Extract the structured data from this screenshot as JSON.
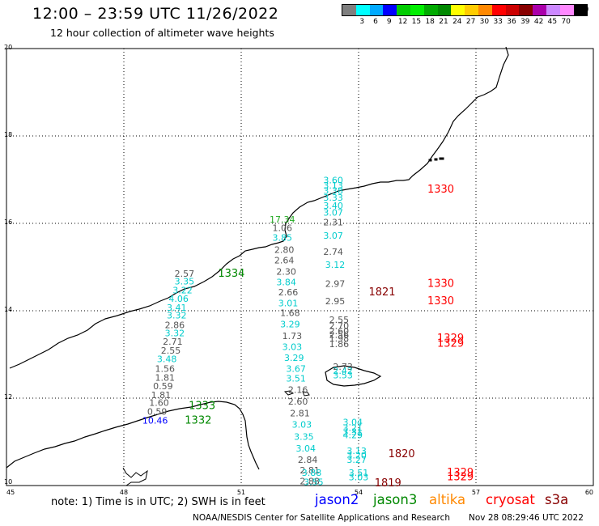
{
  "header": {
    "title": "12:00 – 23:59 UTC 11/26/2022",
    "subtitle": "12 hour collection of altimeter wave heights"
  },
  "legend": {
    "unit": "(ft)",
    "bins": [
      {
        "label": "",
        "color": "#7f7f7f"
      },
      {
        "label": "3",
        "color": "#00ffff"
      },
      {
        "label": "6",
        "color": "#00aaff"
      },
      {
        "label": "9",
        "color": "#0000ff"
      },
      {
        "label": "12",
        "color": "#00cc00"
      },
      {
        "label": "15",
        "color": "#00ee00"
      },
      {
        "label": "18",
        "color": "#00aa00"
      },
      {
        "label": "21",
        "color": "#008800"
      },
      {
        "label": "24",
        "color": "#ffff00"
      },
      {
        "label": "27",
        "color": "#ffcc00"
      },
      {
        "label": "30",
        "color": "#ff8800"
      },
      {
        "label": "33",
        "color": "#ff0000"
      },
      {
        "label": "36",
        "color": "#cc0000"
      },
      {
        "label": "39",
        "color": "#880000"
      },
      {
        "label": "42",
        "color": "#aa00aa"
      },
      {
        "label": "45",
        "color": "#cc88ff"
      },
      {
        "label": "70",
        "color": "#ff88ff"
      },
      {
        "label": "",
        "color": "#000000"
      }
    ]
  },
  "map": {
    "lon_ticks": [
      "45",
      "48",
      "51",
      "54",
      "57",
      "60"
    ],
    "lat_ticks": [
      "20",
      "18",
      "16",
      "14",
      "12",
      "10"
    ]
  },
  "observations": [
    {
      "lon": 53.35,
      "lat": 16.92,
      "text": "3.60",
      "color": "#00cccc"
    },
    {
      "lon": 53.35,
      "lat": 16.8,
      "text": "3.13",
      "color": "#00cccc"
    },
    {
      "lon": 53.35,
      "lat": 16.68,
      "text": "3.38",
      "color": "#00cccc"
    },
    {
      "lon": 53.35,
      "lat": 16.52,
      "text": "3.33",
      "color": "#00cccc"
    },
    {
      "lon": 53.35,
      "lat": 16.33,
      "text": "3.40",
      "color": "#00cccc"
    },
    {
      "lon": 53.35,
      "lat": 16.18,
      "text": "3.07",
      "color": "#00cccc"
    },
    {
      "lon": 53.35,
      "lat": 15.95,
      "text": "2.31",
      "color": "#555555"
    },
    {
      "lon": 53.35,
      "lat": 15.65,
      "text": "3.07",
      "color": "#00cccc"
    },
    {
      "lon": 53.35,
      "lat": 15.28,
      "text": "2.74",
      "color": "#555555"
    },
    {
      "lon": 53.4,
      "lat": 14.98,
      "text": "3.12",
      "color": "#00cccc"
    },
    {
      "lon": 53.4,
      "lat": 14.55,
      "text": "2.97",
      "color": "#555555"
    },
    {
      "lon": 53.4,
      "lat": 14.15,
      "text": "2.95",
      "color": "#555555"
    },
    {
      "lon": 53.5,
      "lat": 13.72,
      "text": "2.55",
      "color": "#555555"
    },
    {
      "lon": 53.5,
      "lat": 13.58,
      "text": "2.70",
      "color": "#555555"
    },
    {
      "lon": 53.5,
      "lat": 13.46,
      "text": "2.60",
      "color": "#555555"
    },
    {
      "lon": 53.5,
      "lat": 13.38,
      "text": "2.56",
      "color": "#555555"
    },
    {
      "lon": 53.5,
      "lat": 13.3,
      "text": "1.98",
      "color": "#555555"
    },
    {
      "lon": 53.5,
      "lat": 13.17,
      "text": "1.86",
      "color": "#555555"
    },
    {
      "lon": 53.6,
      "lat": 12.65,
      "text": "2.73",
      "color": "#555555"
    },
    {
      "lon": 53.6,
      "lat": 12.56,
      "text": "2.42",
      "color": "#00cccc"
    },
    {
      "lon": 53.6,
      "lat": 12.45,
      "text": "3.53",
      "color": "#00cccc"
    },
    {
      "lon": 53.85,
      "lat": 11.38,
      "text": "3.04",
      "color": "#00cccc"
    },
    {
      "lon": 53.85,
      "lat": 11.25,
      "text": "3.21",
      "color": "#00cccc"
    },
    {
      "lon": 53.85,
      "lat": 11.16,
      "text": "3.31",
      "color": "#00cccc"
    },
    {
      "lon": 53.85,
      "lat": 11.08,
      "text": "4.29",
      "color": "#00cccc"
    },
    {
      "lon": 53.95,
      "lat": 10.72,
      "text": "3.13",
      "color": "#00cccc"
    },
    {
      "lon": 53.95,
      "lat": 10.62,
      "text": "3.20",
      "color": "#00cccc"
    },
    {
      "lon": 53.95,
      "lat": 10.52,
      "text": "3.27",
      "color": "#00cccc"
    },
    {
      "lon": 54.0,
      "lat": 10.22,
      "text": "3.51",
      "color": "#00cccc"
    },
    {
      "lon": 54.0,
      "lat": 10.12,
      "text": "3.03",
      "color": "#00cccc"
    },
    {
      "lon": 52.05,
      "lat": 16.02,
      "text": "17.34",
      "color": "#22aa22"
    },
    {
      "lon": 52.05,
      "lat": 15.82,
      "text": "1.06",
      "color": "#555555"
    },
    {
      "lon": 52.05,
      "lat": 15.6,
      "text": "3.85",
      "color": "#00cccc"
    },
    {
      "lon": 52.1,
      "lat": 15.32,
      "text": "2.80",
      "color": "#555555"
    },
    {
      "lon": 52.1,
      "lat": 15.08,
      "text": "2.64",
      "color": "#555555"
    },
    {
      "lon": 52.15,
      "lat": 14.82,
      "text": "2.30",
      "color": "#555555"
    },
    {
      "lon": 52.15,
      "lat": 14.58,
      "text": "3.84",
      "color": "#00cccc"
    },
    {
      "lon": 52.2,
      "lat": 14.35,
      "text": "2.66",
      "color": "#555555"
    },
    {
      "lon": 52.2,
      "lat": 14.1,
      "text": "3.01",
      "color": "#00cccc"
    },
    {
      "lon": 52.25,
      "lat": 13.88,
      "text": "1.68",
      "color": "#555555"
    },
    {
      "lon": 52.25,
      "lat": 13.62,
      "text": "3.29",
      "color": "#00cccc"
    },
    {
      "lon": 52.3,
      "lat": 13.35,
      "text": "1.73",
      "color": "#555555"
    },
    {
      "lon": 52.3,
      "lat": 13.1,
      "text": "3.03",
      "color": "#00cccc"
    },
    {
      "lon": 52.35,
      "lat": 12.85,
      "text": "3.29",
      "color": "#00cccc"
    },
    {
      "lon": 52.4,
      "lat": 12.6,
      "text": "3.67",
      "color": "#00cccc"
    },
    {
      "lon": 52.4,
      "lat": 12.38,
      "text": "3.51",
      "color": "#00cccc"
    },
    {
      "lon": 52.45,
      "lat": 12.12,
      "text": "2.16",
      "color": "#555555"
    },
    {
      "lon": 52.45,
      "lat": 11.85,
      "text": "2.60",
      "color": "#555555"
    },
    {
      "lon": 52.5,
      "lat": 11.58,
      "text": "2.81",
      "color": "#555555"
    },
    {
      "lon": 52.55,
      "lat": 11.32,
      "text": "3.03",
      "color": "#00cccc"
    },
    {
      "lon": 52.6,
      "lat": 11.05,
      "text": "3.35",
      "color": "#00cccc"
    },
    {
      "lon": 52.65,
      "lat": 10.78,
      "text": "3.04",
      "color": "#00cccc"
    },
    {
      "lon": 52.7,
      "lat": 10.52,
      "text": "2.84",
      "color": "#555555"
    },
    {
      "lon": 52.75,
      "lat": 10.28,
      "text": "2.81",
      "color": "#555555"
    },
    {
      "lon": 52.75,
      "lat": 10.03,
      "text": "2.88",
      "color": "#555555"
    },
    {
      "lon": 52.8,
      "lat": 10.22,
      "text": "3.88",
      "color": "#00cccc"
    },
    {
      "lon": 52.85,
      "lat": 10.01,
      "text": "3.55",
      "color": "#00cccc"
    },
    {
      "lon": 49.55,
      "lat": 14.78,
      "text": "2.57",
      "color": "#555555"
    },
    {
      "lon": 49.55,
      "lat": 14.6,
      "text": "3.35",
      "color": "#00cccc"
    },
    {
      "lon": 49.5,
      "lat": 14.4,
      "text": "3.22",
      "color": "#00cccc"
    },
    {
      "lon": 49.4,
      "lat": 14.2,
      "text": "4.06",
      "color": "#00cccc"
    },
    {
      "lon": 49.35,
      "lat": 14.0,
      "text": "3.41",
      "color": "#00cccc"
    },
    {
      "lon": 49.35,
      "lat": 13.82,
      "text": "3.32",
      "color": "#00cccc"
    },
    {
      "lon": 49.3,
      "lat": 13.6,
      "text": "2.86",
      "color": "#555555"
    },
    {
      "lon": 49.3,
      "lat": 13.42,
      "text": "3.32",
      "color": "#00cccc"
    },
    {
      "lon": 49.25,
      "lat": 13.22,
      "text": "2.71",
      "color": "#555555"
    },
    {
      "lon": 49.2,
      "lat": 13.02,
      "text": "2.55",
      "color": "#555555"
    },
    {
      "lon": 49.1,
      "lat": 12.82,
      "text": "3.48",
      "color": "#00cccc"
    },
    {
      "lon": 49.05,
      "lat": 12.6,
      "text": "1.56",
      "color": "#555555"
    },
    {
      "lon": 49.05,
      "lat": 12.4,
      "text": "1.81",
      "color": "#555555"
    },
    {
      "lon": 49.0,
      "lat": 12.2,
      "text": "0.59",
      "color": "#555555"
    },
    {
      "lon": 48.95,
      "lat": 12.0,
      "text": "1.81",
      "color": "#555555"
    },
    {
      "lon": 48.9,
      "lat": 11.82,
      "text": "1.60",
      "color": "#555555"
    },
    {
      "lon": 48.85,
      "lat": 11.62,
      "text": "0.59",
      "color": "#555555"
    },
    {
      "lon": 48.8,
      "lat": 11.42,
      "text": "10.46",
      "color": "#0000ff"
    }
  ],
  "tracks": [
    {
      "lon": 56.1,
      "lat": 16.7,
      "text": "1330",
      "color": "#ff0000"
    },
    {
      "lon": 56.1,
      "lat": 14.55,
      "text": "1330",
      "color": "#ff0000"
    },
    {
      "lon": 56.1,
      "lat": 14.15,
      "text": "1330",
      "color": "#ff0000"
    },
    {
      "lon": 56.35,
      "lat": 13.3,
      "text": "1329",
      "color": "#ff0000"
    },
    {
      "lon": 56.35,
      "lat": 13.18,
      "text": "1329",
      "color": "#ff0000"
    },
    {
      "lon": 56.6,
      "lat": 10.22,
      "text": "1329",
      "color": "#ff0000"
    },
    {
      "lon": 56.6,
      "lat": 10.12,
      "text": "1329",
      "color": "#ff0000"
    },
    {
      "lon": 54.6,
      "lat": 14.35,
      "text": "1821",
      "color": "#880000"
    },
    {
      "lon": 55.1,
      "lat": 10.65,
      "text": "1820",
      "color": "#880000"
    },
    {
      "lon": 54.75,
      "lat": 9.98,
      "text": "1819",
      "color": "#880000"
    },
    {
      "lon": 50.75,
      "lat": 14.78,
      "text": "1334",
      "color": "#008800"
    },
    {
      "lon": 50.0,
      "lat": 11.75,
      "text": "1333",
      "color": "#008800"
    },
    {
      "lon": 49.9,
      "lat": 11.42,
      "text": "1332",
      "color": "#008800"
    }
  ],
  "footer": {
    "note": "note:  1) Time is in UTC;  2) SWH is in feet",
    "satellites": [
      {
        "name": "jason2",
        "color": "#0000ff"
      },
      {
        "name": "jason3",
        "color": "#008800"
      },
      {
        "name": "altika",
        "color": "#ff8800"
      },
      {
        "name": "cryosat",
        "color": "#ff0000"
      },
      {
        "name": "s3a",
        "color": "#880000"
      }
    ],
    "credit": "NOAA/NESDIS Center for Satellite Applications and Research",
    "timestamp": "Nov 28 08:29:46 UTC 2022"
  }
}
